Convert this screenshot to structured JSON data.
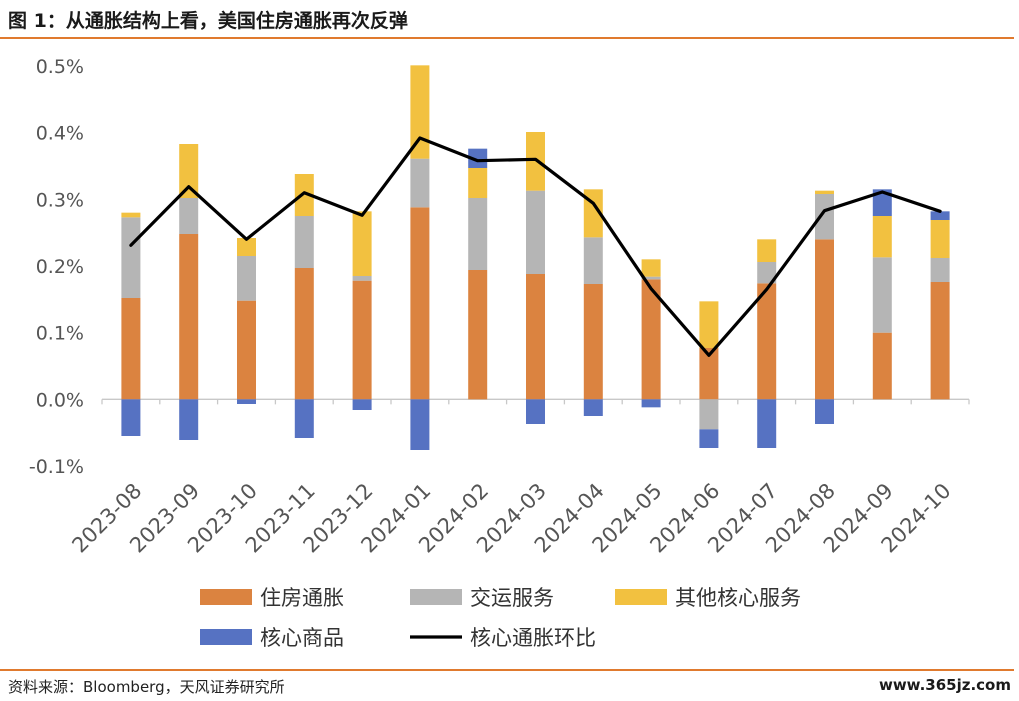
{
  "figure_title": "图 1：从通胀结构上看，美国住房通胀再次反弹",
  "source": "资料来源：Bloomberg，天风证券研究所",
  "watermark": "www.365jz.com",
  "colors": {
    "housing": "#db8340",
    "transport": "#b5b5b5",
    "other_core": "#f2c140",
    "core_goods": "#5672c2",
    "line": "#000000",
    "rule": "#e07a2e"
  },
  "chart_data": {
    "type": "bar",
    "stacked": true,
    "categories": [
      "2023-08",
      "2023-09",
      "2023-10",
      "2023-11",
      "2023-12",
      "2024-01",
      "2024-02",
      "2024-03",
      "2024-04",
      "2024-05",
      "2024-06",
      "2024-07",
      "2024-08",
      "2024-09",
      "2024-10"
    ],
    "y_unit": "%",
    "ylim": [
      -0.1,
      0.5
    ],
    "yticks": [
      "-0.1%",
      "0.0%",
      "0.1%",
      "0.2%",
      "0.3%",
      "0.4%",
      "0.5%"
    ],
    "grid": false,
    "legend_position": "bottom",
    "series": [
      {
        "name": "住房通胀",
        "kind": "bar",
        "color_key": "housing",
        "values": [
          0.152,
          0.248,
          0.148,
          0.197,
          0.178,
          0.288,
          0.194,
          0.188,
          0.173,
          0.18,
          0.077,
          0.174,
          0.24,
          0.1,
          0.176
        ]
      },
      {
        "name": "交运服务",
        "kind": "bar",
        "color_key": "transport",
        "values": [
          0.121,
          0.054,
          0.067,
          0.078,
          0.007,
          0.073,
          0.108,
          0.125,
          0.07,
          0.004,
          -0.045,
          0.032,
          0.068,
          0.113,
          0.036
        ]
      },
      {
        "name": "其他核心服务",
        "kind": "bar",
        "color_key": "other_core",
        "values": [
          0.007,
          0.081,
          0.027,
          0.063,
          0.097,
          0.14,
          0.045,
          0.088,
          0.072,
          0.026,
          0.07,
          0.034,
          0.005,
          0.062,
          0.057
        ]
      },
      {
        "name": "核心商品",
        "kind": "bar",
        "color_key": "core_goods",
        "values": [
          -0.055,
          -0.061,
          -0.007,
          -0.058,
          -0.016,
          -0.076,
          0.029,
          -0.037,
          -0.025,
          -0.012,
          -0.028,
          -0.073,
          -0.037,
          0.04,
          0.013
        ]
      },
      {
        "name": "核心通胀环比",
        "kind": "line",
        "color_key": "line",
        "values": [
          0.231,
          0.319,
          0.24,
          0.31,
          0.276,
          0.392,
          0.358,
          0.36,
          0.294,
          0.166,
          0.066,
          0.165,
          0.283,
          0.311,
          0.282
        ]
      }
    ]
  }
}
